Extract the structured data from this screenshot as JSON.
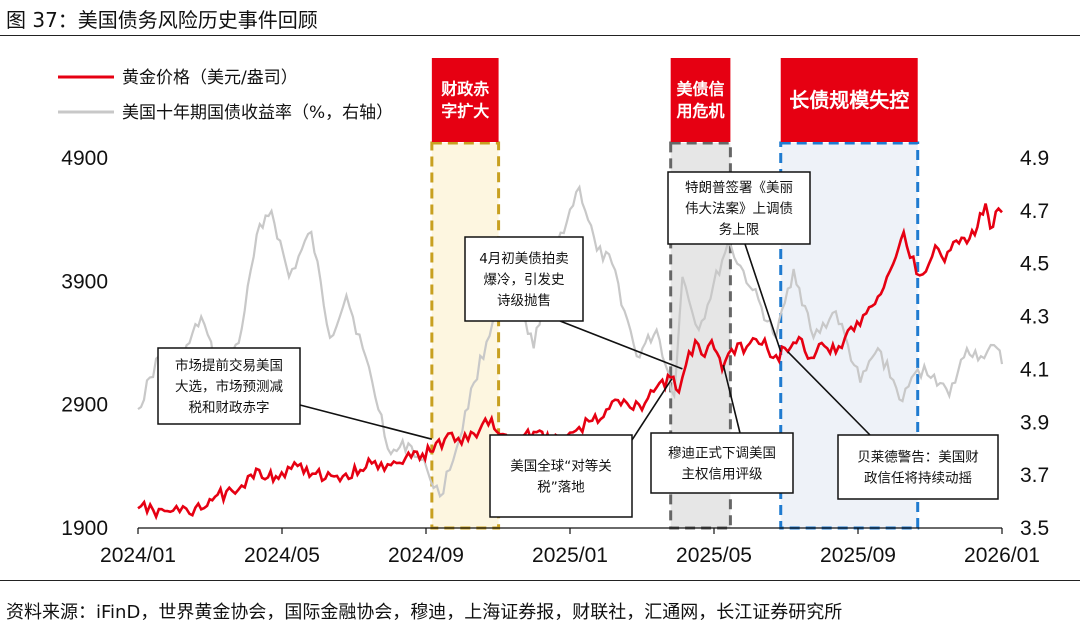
{
  "title": "图 37：美国债务风险历史事件回顾",
  "source": "资料来源：iFinD，世界黄金协会，国际金融协会，穆迪，上海证券报，财联社，汇通网，长江证券研究所",
  "chart_data": {
    "type": "line",
    "x_start": "2024-01-02",
    "x_end": "2026-01-09",
    "x_ticks": [
      "2024/01",
      "2024/05",
      "2024/09",
      "2025/01",
      "2025/05",
      "2025/09",
      "2026/01"
    ],
    "left_axis": {
      "ylim": [
        1900,
        4900
      ],
      "ticks": [
        "4900",
        "3900",
        "2900",
        "1900"
      ]
    },
    "right_axis": {
      "ylim": [
        3.5,
        4.9
      ],
      "ticks": [
        "4.9",
        "4.7",
        "4.5",
        "4.3",
        "4.1",
        "3.9",
        "3.7",
        "3.5"
      ]
    },
    "grid": false,
    "legend_position": "top-left",
    "series": [
      {
        "name": "黄金价格（美元/盎司）",
        "axis": "left",
        "color": "#e60012",
        "points": [
          [
            "2024-01-02",
            2060
          ],
          [
            "2024-01-15",
            2045
          ],
          [
            "2024-02-01",
            2040
          ],
          [
            "2024-02-15",
            2015
          ],
          [
            "2024-03-01",
            2080
          ],
          [
            "2024-03-10",
            2170
          ],
          [
            "2024-03-25",
            2180
          ],
          [
            "2024-04-05",
            2320
          ],
          [
            "2024-04-12",
            2380
          ],
          [
            "2024-04-22",
            2310
          ],
          [
            "2024-05-01",
            2300
          ],
          [
            "2024-05-20",
            2420
          ],
          [
            "2024-05-30",
            2340
          ],
          [
            "2024-06-10",
            2300
          ],
          [
            "2024-06-25",
            2320
          ],
          [
            "2024-07-10",
            2370
          ],
          [
            "2024-07-17",
            2460
          ],
          [
            "2024-07-25",
            2380
          ],
          [
            "2024-08-05",
            2410
          ],
          [
            "2024-08-20",
            2510
          ],
          [
            "2024-09-01",
            2500
          ],
          [
            "2024-09-10",
            2520
          ],
          [
            "2024-09-20",
            2620
          ],
          [
            "2024-09-26",
            2670
          ],
          [
            "2024-10-10",
            2610
          ],
          [
            "2024-10-22",
            2740
          ],
          [
            "2024-10-30",
            2790
          ],
          [
            "2024-11-06",
            2660
          ],
          [
            "2024-11-14",
            2570
          ],
          [
            "2024-11-25",
            2640
          ],
          [
            "2024-12-10",
            2690
          ],
          [
            "2024-12-19",
            2590
          ],
          [
            "2024-12-31",
            2620
          ],
          [
            "2025-01-10",
            2690
          ],
          [
            "2025-01-24",
            2770
          ],
          [
            "2025-02-05",
            2860
          ],
          [
            "2025-02-20",
            2940
          ],
          [
            "2025-02-28",
            2860
          ],
          [
            "2025-03-10",
            2910
          ],
          [
            "2025-03-20",
            3040
          ],
          [
            "2025-04-01",
            3120
          ],
          [
            "2025-04-08",
            3000
          ],
          [
            "2025-04-14",
            3220
          ],
          [
            "2025-04-22",
            3420
          ],
          [
            "2025-04-30",
            3290
          ],
          [
            "2025-05-06",
            3420
          ],
          [
            "2025-05-15",
            3180
          ],
          [
            "2025-05-23",
            3350
          ],
          [
            "2025-06-05",
            3370
          ],
          [
            "2025-06-13",
            3430
          ],
          [
            "2025-06-30",
            3300
          ],
          [
            "2025-07-10",
            3330
          ],
          [
            "2025-07-22",
            3430
          ],
          [
            "2025-07-30",
            3280
          ],
          [
            "2025-08-08",
            3400
          ],
          [
            "2025-08-20",
            3320
          ],
          [
            "2025-09-02",
            3530
          ],
          [
            "2025-09-15",
            3640
          ],
          [
            "2025-09-30",
            3850
          ],
          [
            "2025-10-08",
            4040
          ],
          [
            "2025-10-17",
            4300
          ],
          [
            "2025-10-28",
            3960
          ],
          [
            "2025-11-05",
            3980
          ],
          [
            "2025-11-13",
            4190
          ],
          [
            "2025-11-21",
            4060
          ],
          [
            "2025-12-01",
            4230
          ],
          [
            "2025-12-10",
            4210
          ],
          [
            "2025-12-19",
            4340
          ],
          [
            "2025-12-26",
            4530
          ],
          [
            "2025-12-30",
            4330
          ],
          [
            "2026-01-06",
            4490
          ],
          [
            "2026-01-09",
            4460
          ]
        ]
      },
      {
        "name": "美国十年期国债收益率（%，右轴）",
        "axis": "right",
        "color": "#c8c8c8",
        "points": [
          [
            "2024-01-02",
            3.95
          ],
          [
            "2024-01-20",
            4.15
          ],
          [
            "2024-02-05",
            4.1
          ],
          [
            "2024-02-25",
            4.3
          ],
          [
            "2024-03-10",
            4.1
          ],
          [
            "2024-03-28",
            4.2
          ],
          [
            "2024-04-15",
            4.65
          ],
          [
            "2024-04-25",
            4.7
          ],
          [
            "2024-05-10",
            4.45
          ],
          [
            "2024-05-29",
            4.62
          ],
          [
            "2024-06-14",
            4.22
          ],
          [
            "2024-06-28",
            4.38
          ],
          [
            "2024-07-12",
            4.18
          ],
          [
            "2024-08-05",
            3.78
          ],
          [
            "2024-08-20",
            3.82
          ],
          [
            "2024-09-05",
            3.72
          ],
          [
            "2024-09-16",
            3.62
          ],
          [
            "2024-09-30",
            3.8
          ],
          [
            "2024-10-15",
            4.05
          ],
          [
            "2024-10-31",
            4.28
          ],
          [
            "2024-11-15",
            4.45
          ],
          [
            "2024-12-05",
            4.18
          ],
          [
            "2024-12-20",
            4.52
          ],
          [
            "2025-01-13",
            4.79
          ],
          [
            "2025-01-28",
            4.55
          ],
          [
            "2025-02-10",
            4.5
          ],
          [
            "2025-03-03",
            4.15
          ],
          [
            "2025-03-20",
            4.25
          ],
          [
            "2025-04-04",
            4.0
          ],
          [
            "2025-04-11",
            4.45
          ],
          [
            "2025-04-25",
            4.25
          ],
          [
            "2025-05-20",
            4.58
          ],
          [
            "2025-06-10",
            4.4
          ],
          [
            "2025-06-30",
            4.22
          ],
          [
            "2025-07-15",
            4.48
          ],
          [
            "2025-08-01",
            4.22
          ],
          [
            "2025-08-20",
            4.32
          ],
          [
            "2025-09-10",
            4.05
          ],
          [
            "2025-09-25",
            4.18
          ],
          [
            "2025-10-16",
            3.98
          ],
          [
            "2025-10-29",
            4.1
          ],
          [
            "2025-11-12",
            4.08
          ],
          [
            "2025-11-25",
            4.0
          ],
          [
            "2025-12-10",
            4.18
          ],
          [
            "2025-12-22",
            4.15
          ],
          [
            "2026-01-05",
            4.18
          ],
          [
            "2026-01-09",
            4.12
          ]
        ]
      }
    ],
    "event_bands": [
      {
        "label": "财政赤字扩大",
        "start": "2024-09-09",
        "end": "2024-11-05",
        "border_color": "#c8a020",
        "fill": "#fdf6e0"
      },
      {
        "label": "美债信用危机",
        "start": "2025-04-01",
        "end": "2025-05-22",
        "border_color": "#666666",
        "fill": "#e6e6e6"
      },
      {
        "label": "长债规模失控",
        "start": "2025-07-04",
        "end": "2025-10-29",
        "border_color": "#1f7bd0",
        "fill": "#eef2f8"
      }
    ],
    "annotations": [
      {
        "text": "市场提前交易美国\n大选，市场预测减\n税和财政赤字",
        "date": "2024-09-09",
        "value": 2620
      },
      {
        "text": "4月初美债拍卖\n爆冷，引发史\n诗级抛售",
        "date": "2025-04-11",
        "value": 3190
      },
      {
        "text": "美国全球“对等关\n税”落地",
        "date": "2025-04-02",
        "value": 3110
      },
      {
        "text": "穆迪正式下调美国\n主权信用评级",
        "date": "2025-05-16",
        "value": 3220
      },
      {
        "text": "特朗普签署《美丽\n伟大法案》上调债\n务上限",
        "date": "2025-07-04",
        "value": 3330
      },
      {
        "text": "贝莱德警告：美国财\n政信任将持续动摇",
        "date": "2025-07-10",
        "value": 3330
      }
    ]
  }
}
